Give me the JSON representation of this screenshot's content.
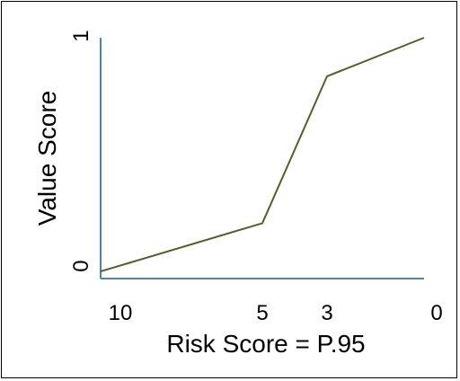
{
  "chart_data": {
    "type": "line",
    "title": "",
    "xlabel": "Risk Score = P.95",
    "ylabel": "Value Score",
    "x_axis": {
      "reversed": true,
      "range": [
        10,
        0
      ],
      "ticks": [
        10,
        5,
        3,
        0
      ],
      "tick_labels": [
        "10",
        "5",
        "3",
        "0"
      ]
    },
    "y_axis": {
      "range": [
        0,
        1
      ],
      "ticks": [
        0,
        1
      ],
      "tick_labels": [
        "0",
        "1"
      ]
    },
    "series": [
      {
        "x": [
          10,
          5,
          3,
          0
        ],
        "y": [
          0.03,
          0.23,
          0.84,
          1.0
        ],
        "color": "#4f6228"
      }
    ],
    "axis_color": "#4f81bd",
    "grid": false,
    "legend": "none"
  }
}
